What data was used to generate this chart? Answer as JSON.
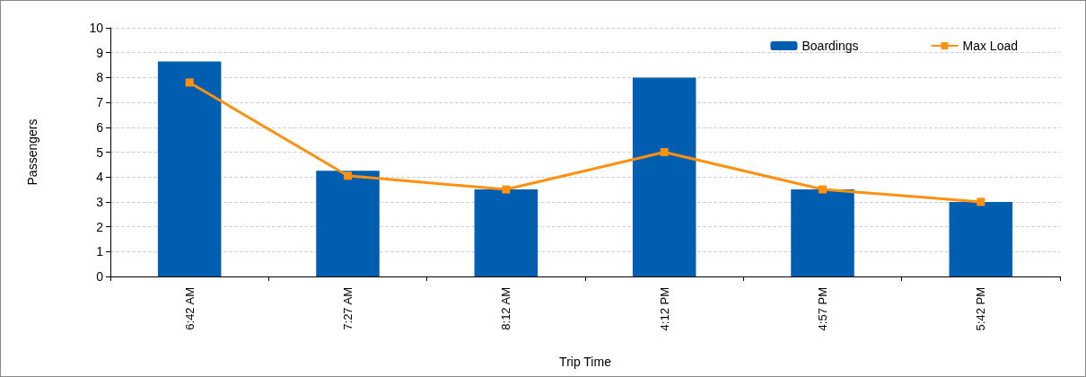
{
  "chart_data": {
    "type": "bar",
    "xlabel": "Trip Time",
    "ylabel": "Passengers",
    "categories": [
      "6:42 AM",
      "7:27 AM",
      "8:12 AM",
      "4:12 PM",
      "4:57 PM",
      "5:42 PM"
    ],
    "series": [
      {
        "name": "Boardings",
        "color": "#005eb0",
        "values": [
          8.65,
          4.25,
          3.5,
          8.0,
          3.5,
          3.0
        ]
      },
      {
        "name": "Max Load",
        "type": "line",
        "color": "#ff9010",
        "values": [
          7.8,
          4.05,
          3.5,
          5.0,
          3.5,
          3.0
        ]
      }
    ],
    "ylim": [
      0,
      10
    ],
    "yticks": [
      0,
      1,
      2,
      3,
      4,
      5,
      6,
      7,
      8,
      9,
      10
    ],
    "grid": "y",
    "legend": "top right",
    "marker": "square",
    "line_style": "solid"
  }
}
